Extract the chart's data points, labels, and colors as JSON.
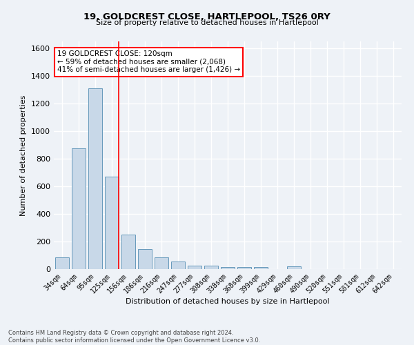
{
  "title": "19, GOLDCREST CLOSE, HARTLEPOOL, TS26 0RY",
  "subtitle": "Size of property relative to detached houses in Hartlepool",
  "xlabel": "Distribution of detached houses by size in Hartlepool",
  "ylabel": "Number of detached properties",
  "categories": [
    "34sqm",
    "64sqm",
    "95sqm",
    "125sqm",
    "156sqm",
    "186sqm",
    "216sqm",
    "247sqm",
    "277sqm",
    "308sqm",
    "338sqm",
    "368sqm",
    "399sqm",
    "429sqm",
    "460sqm",
    "490sqm",
    "520sqm",
    "551sqm",
    "581sqm",
    "612sqm",
    "642sqm"
  ],
  "values": [
    85,
    875,
    1310,
    670,
    248,
    145,
    85,
    57,
    27,
    27,
    15,
    15,
    15,
    0,
    18,
    0,
    0,
    0,
    0,
    0,
    0
  ],
  "bar_color": "#c8d8e8",
  "bar_edge_color": "#6699bb",
  "property_sqm": 120,
  "annotation_text": "19 GOLDCREST CLOSE: 120sqm\n← 59% of detached houses are smaller (2,068)\n41% of semi-detached houses are larger (1,426) →",
  "annotation_box_color": "white",
  "annotation_box_edge_color": "red",
  "footer_line1": "Contains HM Land Registry data © Crown copyright and database right 2024.",
  "footer_line2": "Contains public sector information licensed under the Open Government Licence v3.0.",
  "ylim": [
    0,
    1650
  ],
  "yticks": [
    0,
    200,
    400,
    600,
    800,
    1000,
    1200,
    1400,
    1600
  ],
  "background_color": "#eef2f7",
  "grid_color": "white",
  "red_line_index": 3
}
